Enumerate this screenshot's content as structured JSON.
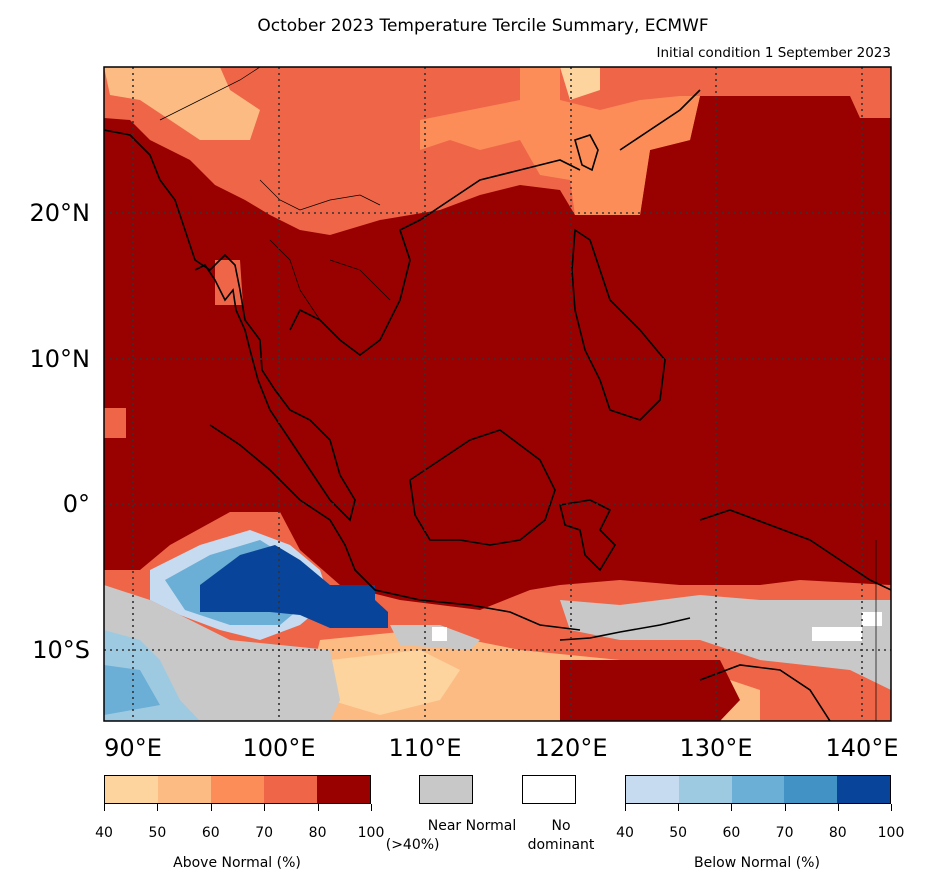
{
  "title": "October 2023 Temperature Tercile Summary, ECMWF",
  "subtitle": "Initial condition 1 September 2023",
  "map": {
    "lon_labels": [
      "90°E",
      "100°E",
      "110°E",
      "120°E",
      "130°E",
      "140°E"
    ],
    "lat_labels": [
      "20°N",
      "10°N",
      "0°",
      "10°S"
    ],
    "extent": {
      "lon_min": 88,
      "lon_max": 142,
      "lat_min": -15,
      "lat_max": 30
    }
  },
  "legend": {
    "above_normal": {
      "title": "Above Normal (%)",
      "ticks": [
        "40",
        "50",
        "60",
        "70",
        "80",
        "100"
      ],
      "colors": [
        "#fdd49e",
        "#fdbb84",
        "#fc8d59",
        "#ef6548",
        "#990000"
      ]
    },
    "near_normal": {
      "label_line1": "Near Normal",
      "label_line2": "(>40%)",
      "color": "#c8c8c8"
    },
    "no_dominant": {
      "label_line1": "No",
      "label_line2": "dominant",
      "color": "#ffffff"
    },
    "below_normal": {
      "title": "Below Normal (%)",
      "ticks": [
        "40",
        "50",
        "60",
        "70",
        "80",
        "100"
      ],
      "colors": [
        "#c6dbef",
        "#9ecae1",
        "#6baed6",
        "#4292c6",
        "#08459a"
      ]
    }
  }
}
